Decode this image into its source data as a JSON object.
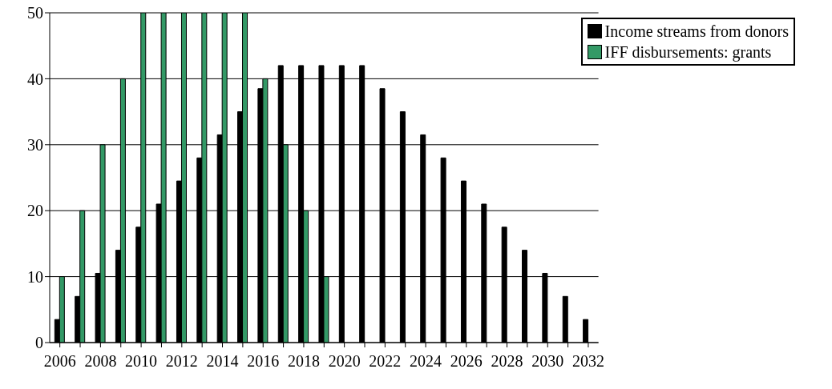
{
  "chart_data": {
    "type": "bar",
    "categories": [
      "2006",
      null,
      "2008",
      null,
      "2010",
      null,
      "2012",
      null,
      "2014",
      null,
      "2016",
      null,
      "2018",
      null,
      "2020",
      null,
      "2022",
      null,
      "2024",
      null,
      "2026",
      null,
      "2028",
      null,
      "2030",
      null,
      "2032"
    ],
    "series": [
      {
        "name": "Income streams from donors",
        "color": "#000000",
        "values": [
          3.5,
          7,
          10.5,
          14,
          17.5,
          21,
          24.5,
          28,
          31.5,
          35,
          38.5,
          42,
          42,
          42,
          42,
          42,
          38.5,
          35,
          31.5,
          28,
          24.5,
          21,
          17.5,
          14,
          10.5,
          7,
          3.5
        ]
      },
      {
        "name": "IFF disbursements: grants",
        "color": "#339966",
        "values": [
          10,
          20,
          30,
          40,
          50,
          50,
          50,
          50,
          50,
          50,
          40,
          30,
          20,
          10,
          null,
          null,
          null,
          null,
          null,
          null,
          null,
          null,
          null,
          null,
          null,
          null,
          null
        ]
      }
    ],
    "ylim": [
      0,
      50
    ],
    "yticks": [
      0,
      10,
      20,
      30,
      40,
      50
    ],
    "grid": "y",
    "legend": "top right"
  }
}
